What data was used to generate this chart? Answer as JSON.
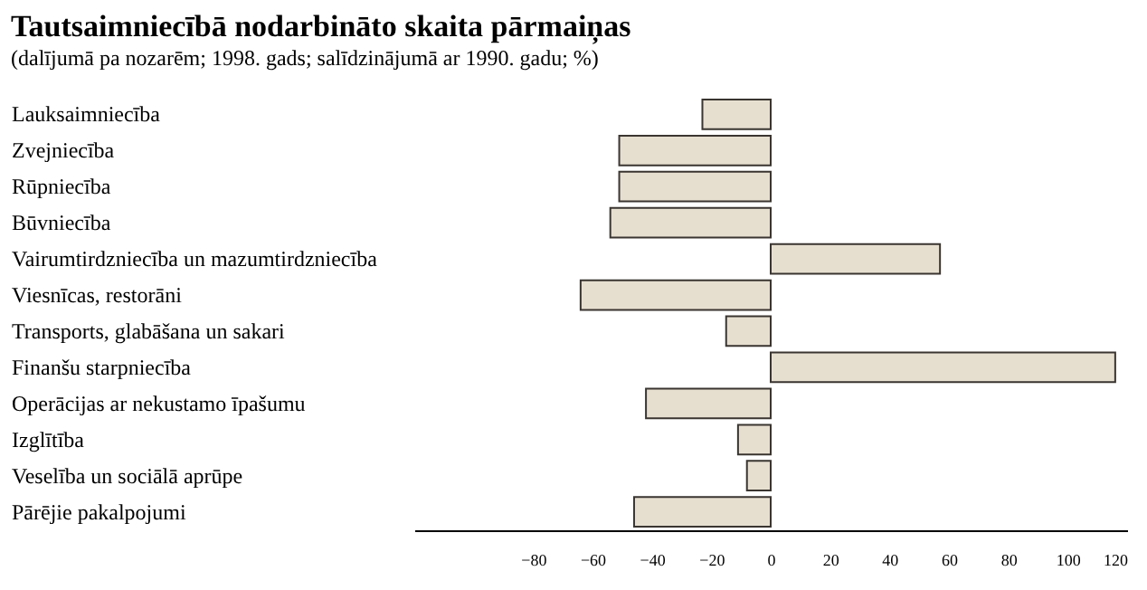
{
  "chart_data": {
    "type": "bar",
    "orientation": "horizontal",
    "title": "Tautsaimniecībā nodarbināto skaita pārmaiņas",
    "subtitle": "(dalījumā pa nozarēm; 1998. gads; salīdzinājumā ar 1990. gadu; %)",
    "categories": [
      "Lauksaimniecība",
      "Zvejniecība",
      "Rūpniecība",
      "Būvniecība",
      "Vairumtirdzniecība un mazumtirdzniecība",
      "Viesnīcas, restorāni",
      "Transports, glabāšana un sakari",
      "Finanšu starpniecība",
      "Operācijas ar nekustamo īpašumu",
      "Izglītība",
      "Veselība un sociālā aprūpe",
      "Pārējie pakalpojumi"
    ],
    "values": [
      -23,
      -51,
      -51,
      -54,
      57,
      -64,
      -15,
      116,
      -42,
      -11,
      -8,
      -46
    ],
    "color": "#e6dfd0",
    "xlim": [
      -120,
      120
    ],
    "xticks": [
      -80,
      -60,
      -40,
      -20,
      0,
      20,
      40,
      60,
      80,
      100,
      120
    ],
    "grid": false
  }
}
